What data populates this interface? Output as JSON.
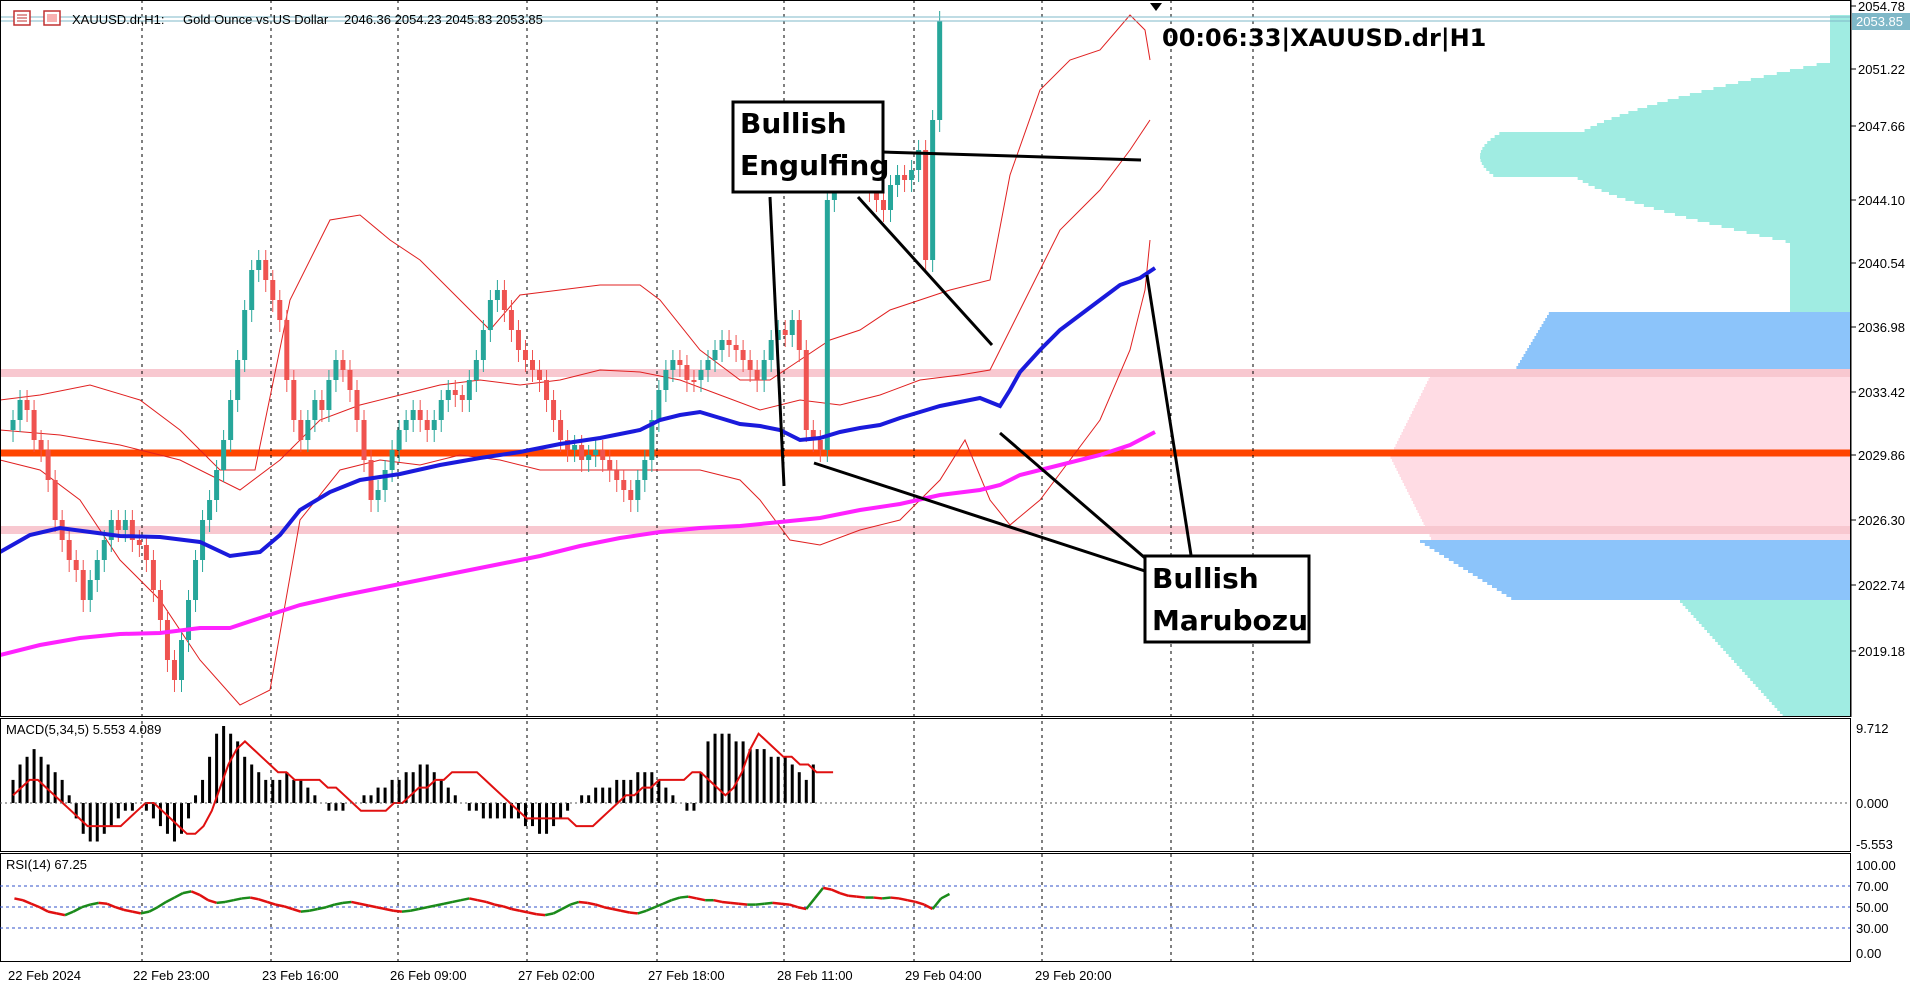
{
  "header": {
    "symbol": "XAUUSD.dr,H1:",
    "description": "Gold Ounce vs US Dollar",
    "ohlc": "2046.36 2054.23 2045.83 2053.85"
  },
  "timer_label": "00:06:33|XAUUSD.dr|H1",
  "annotations": {
    "engulfing": [
      "Bullish",
      "Engulfing"
    ],
    "marubozu": [
      "Bullish",
      "Marubozu"
    ]
  },
  "price_axis": {
    "ticks": [
      "2054.78",
      "2051.22",
      "2047.66",
      "2044.10",
      "2040.54",
      "2036.98",
      "2033.42",
      "2029.86",
      "2026.30",
      "2022.74",
      "2019.18"
    ],
    "current_price": "2053.85"
  },
  "macd": {
    "label": "MACD(5,34,5) 5.553 4.089",
    "ticks": [
      "9.712",
      "0.000",
      "-5.553"
    ]
  },
  "rsi": {
    "label": "RSI(14) 67.25",
    "ticks": [
      "100.00",
      "70.00",
      "50.00",
      "30.00",
      "0.00"
    ]
  },
  "time_axis": [
    "22 Feb 2024",
    "22 Feb 23:00",
    "23 Feb 16:00",
    "26 Feb 09:00",
    "27 Feb 02:00",
    "27 Feb 18:00",
    "28 Feb 11:00",
    "29 Feb 04:00",
    "29 Feb 20:00"
  ],
  "colors": {
    "bull": "#26a69a",
    "bear": "#ef5350",
    "ma_fast": "#1a1adc",
    "ma_slow": "#ff22ff",
    "bollinger": "#e02020",
    "key_level": "#ff4500",
    "zone": "#f8c8d0",
    "profile_cyan": "#a0ece2",
    "profile_blue": "#8cc4fa",
    "profile_pink": "#ffdce4",
    "rsi_up": "#1a8a1a",
    "rsi_down": "#e01010"
  }
}
